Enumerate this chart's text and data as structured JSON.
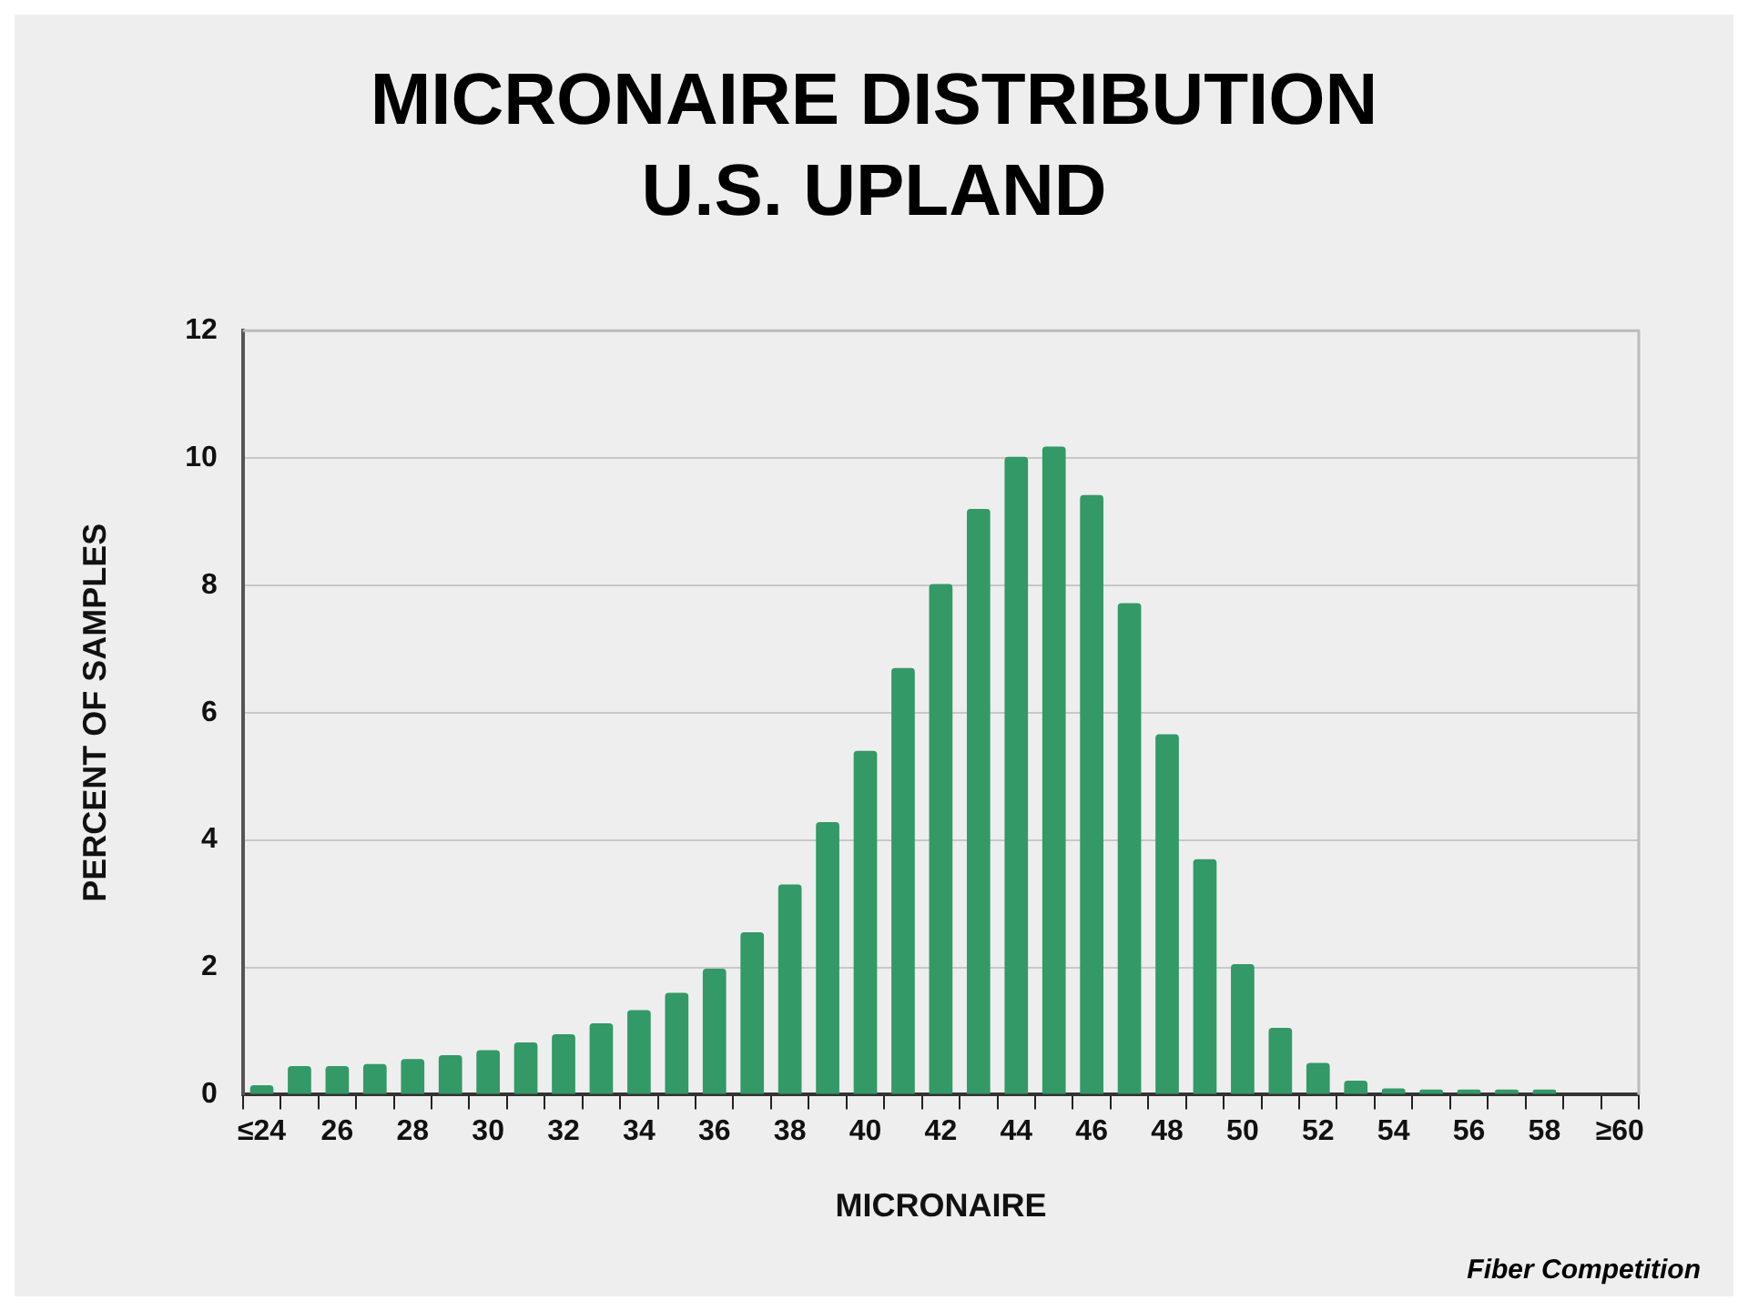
{
  "chart_data": {
    "type": "bar",
    "title": "MICRONAIRE DISTRIBUTION\nU.S. UPLAND",
    "xlabel": "MICRONAIRE",
    "ylabel": "PERCENT OF SAMPLES",
    "categories": [
      "≤24",
      null,
      "26",
      null,
      "28",
      null,
      "30",
      null,
      "32",
      null,
      "34",
      null,
      "36",
      null,
      "38",
      null,
      "40",
      null,
      "42",
      null,
      "44",
      null,
      "46",
      null,
      "48",
      null,
      "50",
      null,
      "52",
      null,
      "54",
      null,
      "56",
      null,
      "58",
      null,
      "≥60"
    ],
    "values": [
      0.15,
      0.45,
      0.45,
      0.48,
      0.56,
      0.62,
      0.7,
      0.82,
      0.95,
      1.12,
      1.33,
      1.6,
      1.98,
      2.55,
      3.3,
      4.28,
      5.4,
      6.7,
      8.02,
      9.2,
      10.02,
      10.18,
      9.42,
      7.72,
      5.66,
      3.7,
      2.05,
      1.05,
      0.5,
      0.22,
      0.1,
      0.08,
      0.08,
      0.08,
      0.08,
      0,
      0
    ],
    "color": "#339966",
    "ylim": [
      0,
      12
    ],
    "yticks": [
      0,
      2,
      4,
      6,
      8,
      10,
      12
    ],
    "grid": "y",
    "annotations": [
      "Fiber Competition"
    ]
  }
}
